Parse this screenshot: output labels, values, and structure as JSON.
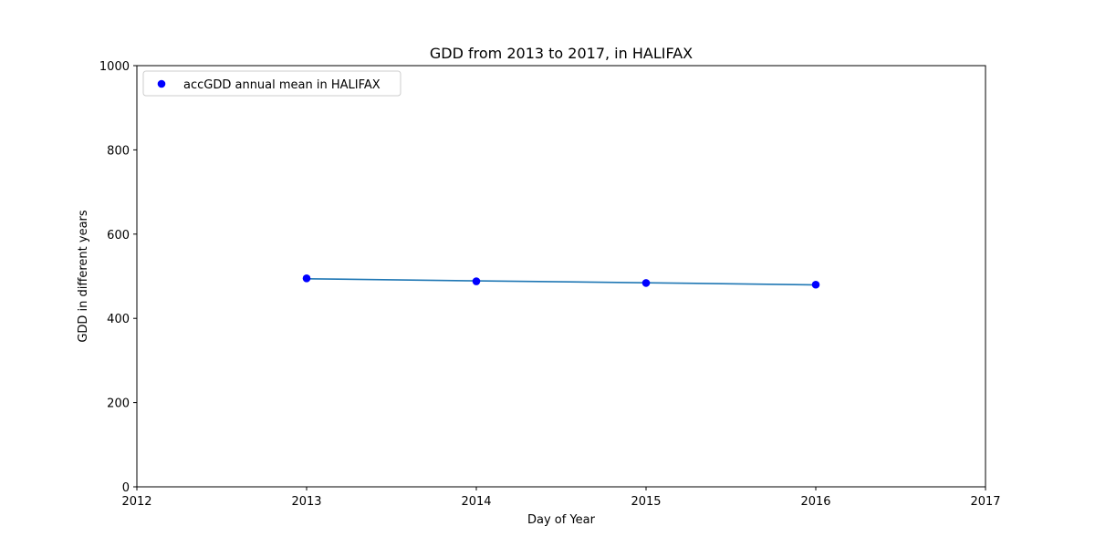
{
  "chart_data": {
    "type": "line",
    "title": "GDD from 2013 to 2017, in HALIFAX",
    "xlabel": "Day of Year",
    "ylabel": "GDD in different years",
    "xlim": [
      2012,
      2017
    ],
    "ylim": [
      0,
      1000
    ],
    "x_ticks": [
      2012,
      2013,
      2014,
      2015,
      2016,
      2017
    ],
    "y_ticks": [
      0,
      200,
      400,
      600,
      800,
      1000
    ],
    "grid": false,
    "legend_position": "top-left",
    "series": [
      {
        "name": "accGDD annual mean in HALIFAX",
        "style": "scatter",
        "color": "#0000ff",
        "x": [
          2013,
          2014,
          2015,
          2016
        ],
        "y": [
          495,
          488,
          484,
          480
        ]
      },
      {
        "style": "line",
        "color": "#1f77b4",
        "x": [
          2013,
          2014,
          2015,
          2016
        ],
        "y": [
          494,
          489,
          484.5,
          479.5
        ]
      }
    ]
  }
}
